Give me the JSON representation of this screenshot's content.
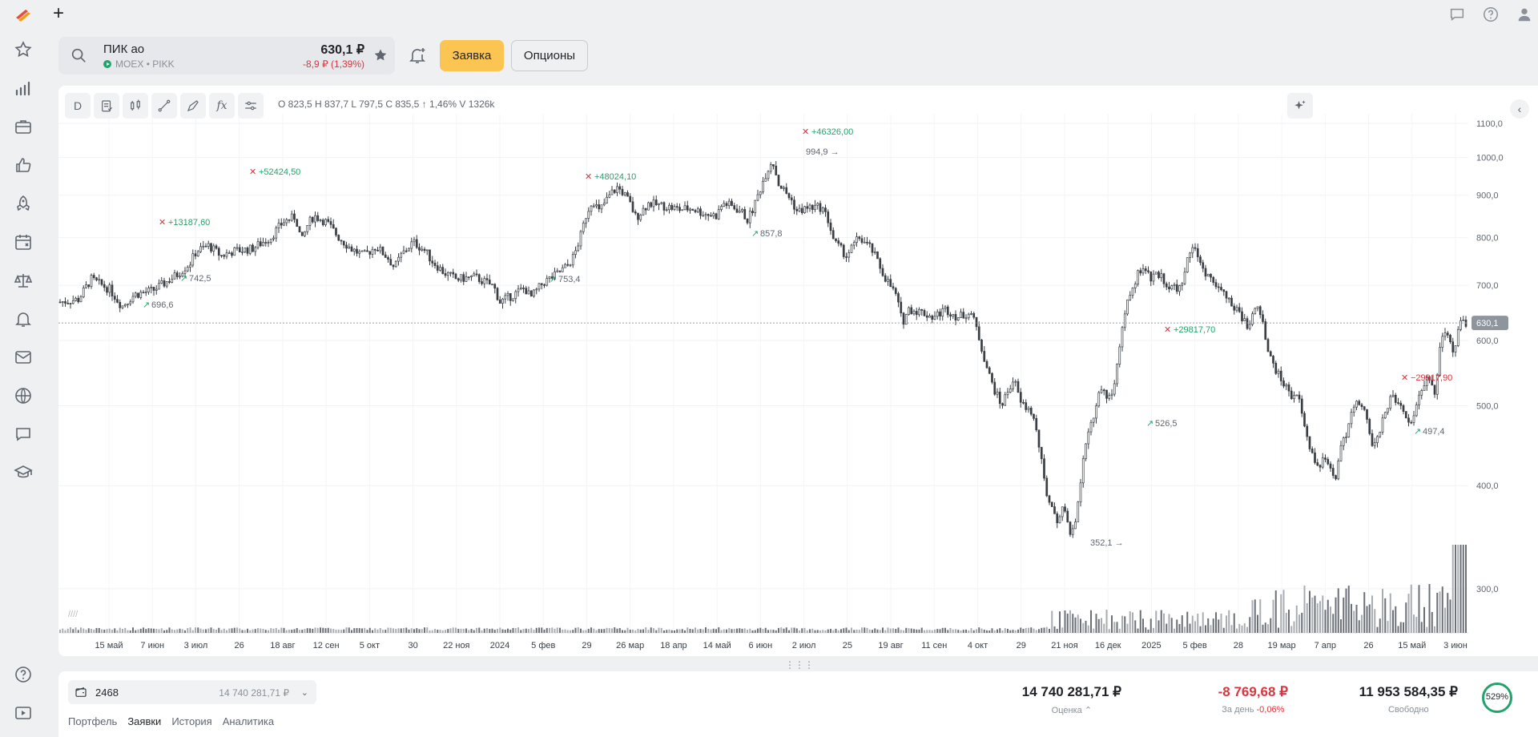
{
  "topbar": {
    "add_label": "+",
    "icons": [
      "chat-icon",
      "help-icon",
      "user-icon"
    ]
  },
  "sidebar": {
    "items": [
      "star-icon",
      "bar-chart-icon",
      "briefcase-icon",
      "thumbs-up-icon",
      "rocket-icon",
      "calendar-icon",
      "scales-icon",
      "bell-icon",
      "mail-icon",
      "globe-icon",
      "message-icon",
      "graduation-cap-icon"
    ],
    "bottom_items": [
      "help-icon",
      "video-icon"
    ]
  },
  "instrument": {
    "name": "ПИК ао",
    "exchange": "MOEX",
    "separator": "•",
    "ticker": "PIKK",
    "price": "630,1 ₽",
    "change": "-8,9 ₽ (1,39%)",
    "change_color": "#d9363e"
  },
  "actions": {
    "order_label": "Заявка",
    "options_label": "Опционы",
    "accent": "#fcc451"
  },
  "chart_toolbar": {
    "period_label": "D",
    "icons": [
      "clipboard-icon",
      "candles-icon",
      "draw-line-icon",
      "draw-pen-icon",
      "function-icon",
      "settings-sliders-icon"
    ],
    "function_label": "fx"
  },
  "ohlc_line": "O 823,5 H 837,7 L 797,5 C 835,5 ↑ 1,46% V 1326k",
  "chart_data": {
    "type": "candlestick",
    "symbol": "PIKK",
    "y_axis": {
      "scale": "log",
      "range": [
        290,
        1130
      ],
      "ticks": [
        "1100,0",
        "1000,0",
        "900,0",
        "800,0",
        "700,0",
        "600,0",
        "500,0",
        "400,0",
        "300,0"
      ]
    },
    "x_ticks": [
      "15 май",
      "7 июн",
      "3 июл",
      "26",
      "18 авг",
      "12 сен",
      "5 окт",
      "30",
      "22 ноя",
      "2024",
      "5 фев",
      "29",
      "26 мар",
      "18 апр",
      "14 май",
      "6 июн",
      "2 июл",
      "25",
      "19 авг",
      "11 сен",
      "4 окт",
      "29",
      "21 ноя",
      "16 дек",
      "2025",
      "5 фев",
      "28",
      "19 мар",
      "7 апр",
      "26",
      "15 май",
      "3 июн"
    ],
    "current_price_label": "630,1",
    "current_price": 630.1,
    "price_path": [
      [
        0,
        668
      ],
      [
        3,
        673
      ],
      [
        5,
        712
      ],
      [
        8,
        692
      ],
      [
        10,
        660
      ],
      [
        12,
        682
      ],
      [
        15,
        690
      ],
      [
        17,
        705
      ],
      [
        19,
        722
      ],
      [
        21,
        745
      ],
      [
        22,
        770
      ],
      [
        24,
        782
      ],
      [
        26,
        760
      ],
      [
        28,
        770
      ],
      [
        31,
        775
      ],
      [
        34,
        800
      ],
      [
        36,
        835
      ],
      [
        38,
        848
      ],
      [
        39,
        790
      ],
      [
        40,
        830
      ],
      [
        41,
        850
      ],
      [
        43,
        835
      ],
      [
        45,
        800
      ],
      [
        47,
        775
      ],
      [
        49,
        760
      ],
      [
        51,
        780
      ],
      [
        53,
        755
      ],
      [
        54,
        735
      ],
      [
        55,
        760
      ],
      [
        57,
        790
      ],
      [
        59,
        770
      ],
      [
        60,
        750
      ],
      [
        62,
        725
      ],
      [
        64,
        712
      ],
      [
        67,
        716
      ],
      [
        70,
        698
      ],
      [
        71,
        668
      ],
      [
        73,
        680
      ],
      [
        75,
        695
      ],
      [
        76,
        676
      ],
      [
        78,
        705
      ],
      [
        80,
        720
      ],
      [
        82,
        740
      ],
      [
        83,
        760
      ],
      [
        84,
        800
      ],
      [
        85,
        855
      ],
      [
        86,
        890
      ],
      [
        87,
        860
      ],
      [
        89,
        905
      ],
      [
        90,
        920
      ],
      [
        91,
        905
      ],
      [
        92,
        880
      ],
      [
        93,
        845
      ],
      [
        95,
        880
      ],
      [
        98,
        872
      ],
      [
        100,
        865
      ],
      [
        102,
        868
      ],
      [
        104,
        855
      ],
      [
        106,
        850
      ],
      [
        107,
        880
      ],
      [
        108,
        876
      ],
      [
        110,
        860
      ],
      [
        111,
        840
      ],
      [
        112,
        870
      ],
      [
        114,
        958
      ],
      [
        115,
        995
      ],
      [
        116,
        930
      ],
      [
        118,
        890
      ],
      [
        119,
        860
      ],
      [
        121,
        870
      ],
      [
        123,
        870
      ],
      [
        124,
        840
      ],
      [
        125,
        790
      ],
      [
        127,
        760
      ],
      [
        129,
        800
      ],
      [
        131,
        775
      ],
      [
        133,
        720
      ],
      [
        135,
        680
      ],
      [
        136,
        630
      ],
      [
        137,
        655
      ],
      [
        139,
        650
      ],
      [
        141,
        640
      ],
      [
        143,
        655
      ],
      [
        145,
        640
      ],
      [
        147,
        650
      ],
      [
        148,
        620
      ],
      [
        149,
        580
      ],
      [
        150,
        545
      ],
      [
        151,
        520
      ],
      [
        152,
        500
      ],
      [
        154,
        540
      ],
      [
        155,
        505
      ],
      [
        157,
        490
      ],
      [
        158,
        450
      ],
      [
        159,
        400
      ],
      [
        160,
        375
      ],
      [
        161,
        360
      ],
      [
        162,
        380
      ],
      [
        163,
        352
      ],
      [
        164,
        360
      ],
      [
        165,
        420
      ],
      [
        166,
        460
      ],
      [
        167,
        490
      ],
      [
        168,
        526
      ],
      [
        169,
        510
      ],
      [
        170,
        520
      ],
      [
        171,
        580
      ],
      [
        172,
        650
      ],
      [
        173,
        690
      ],
      [
        174,
        720
      ],
      [
        175,
        740
      ],
      [
        176,
        710
      ],
      [
        177,
        725
      ],
      [
        179,
        700
      ],
      [
        181,
        690
      ],
      [
        182,
        760
      ],
      [
        183,
        790
      ],
      [
        184,
        740
      ],
      [
        186,
        710
      ],
      [
        188,
        680
      ],
      [
        189,
        665
      ],
      [
        190,
        650
      ],
      [
        191,
        640
      ],
      [
        192,
        615
      ],
      [
        193,
        660
      ],
      [
        194,
        645
      ],
      [
        195,
        580
      ],
      [
        197,
        540
      ],
      [
        199,
        510
      ],
      [
        200,
        520
      ],
      [
        201,
        470
      ],
      [
        202,
        440
      ],
      [
        203,
        420
      ],
      [
        204,
        430
      ],
      [
        206,
        410
      ],
      [
        207,
        450
      ],
      [
        208,
        470
      ],
      [
        209,
        500
      ],
      [
        210,
        510
      ],
      [
        211,
        480
      ],
      [
        212,
        440
      ],
      [
        213,
        460
      ],
      [
        214,
        497
      ],
      [
        215,
        510
      ],
      [
        216,
        505
      ],
      [
        217,
        495
      ],
      [
        218,
        470
      ],
      [
        219,
        505
      ],
      [
        220,
        530
      ],
      [
        221,
        545
      ],
      [
        222,
        520
      ],
      [
        223,
        600
      ],
      [
        224,
        612
      ],
      [
        225,
        580
      ],
      [
        226,
        635
      ],
      [
        227,
        630
      ]
    ],
    "price_labels": [
      {
        "text": "696,6",
        "kind": "up"
      },
      {
        "text": "742,5",
        "kind": "up"
      },
      {
        "text": "753,4",
        "kind": "up"
      },
      {
        "text": "857,8",
        "kind": "up"
      },
      {
        "text": "994,9",
        "kind": "high"
      },
      {
        "text": "352,1",
        "kind": "low"
      },
      {
        "text": "526,5",
        "kind": "up"
      },
      {
        "text": "497,4",
        "kind": "up"
      }
    ],
    "trade_labels": [
      {
        "text": "+13187,60",
        "color": "#23a36b"
      },
      {
        "text": "+52424,50",
        "color": "#23a36b"
      },
      {
        "text": "+48024,10",
        "color": "#23a36b"
      },
      {
        "text": "+46326,00",
        "color": "#23a36b"
      },
      {
        "text": "+29817,70",
        "color": "#23a36b"
      },
      {
        "text": "−29917,90",
        "color": "#d9363e"
      }
    ]
  },
  "account": {
    "number": "2468",
    "sum": "14 740 281,71 ₽",
    "tabs": [
      "Портфель",
      "Заявки",
      "История",
      "Аналитика"
    ],
    "active_tab": "Заявки"
  },
  "metrics": [
    {
      "value": "14 740 281,71 ₽",
      "label": "Оценка ⌃",
      "negative": false,
      "label_negative": ""
    },
    {
      "value": "-8 769,68 ₽",
      "label": "За день",
      "negative": true,
      "label_negative": "-0,06%"
    },
    {
      "value": "11 953 584,35 ₽",
      "label": "Свободно",
      "negative": false,
      "label_negative": ""
    }
  ],
  "gauge": {
    "text": "529%",
    "color": "#23a36b"
  },
  "colors": {
    "up": "#23a36b",
    "down": "#d9363e",
    "candle": "#3a3f45"
  }
}
